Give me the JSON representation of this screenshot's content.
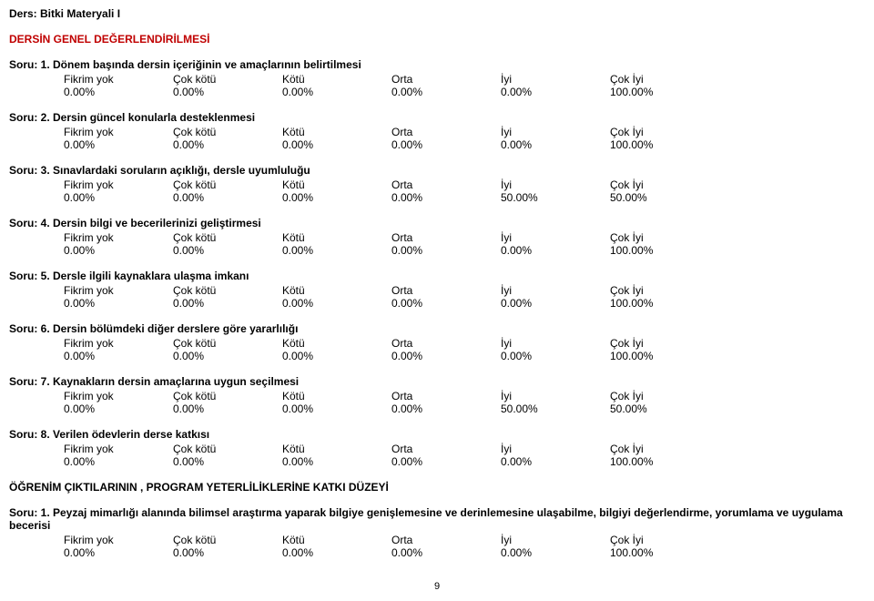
{
  "course_title": "Ders: Bitki Materyali I",
  "section1_title": "DERSİN GENEL DEĞERLENDİRİLMESİ",
  "labels": {
    "l0": "Fikrim yok",
    "l1": "Çok kötü",
    "l2": "Kötü",
    "l3": "Orta",
    "l4": "İyi",
    "l5": "Çok İyi"
  },
  "questions": [
    {
      "title": "Soru: 1. Dönem başında dersin içeriğinin ve amaçlarının belirtilmesi",
      "v": [
        "0.00%",
        "0.00%",
        "0.00%",
        "0.00%",
        "0.00%",
        "100.00%"
      ]
    },
    {
      "title": "Soru: 2. Dersin güncel konularla desteklenmesi",
      "v": [
        "0.00%",
        "0.00%",
        "0.00%",
        "0.00%",
        "0.00%",
        "100.00%"
      ]
    },
    {
      "title": "Soru: 3. Sınavlardaki soruların açıklığı, dersle uyumluluğu",
      "v": [
        "0.00%",
        "0.00%",
        "0.00%",
        "0.00%",
        "50.00%",
        "50.00%"
      ]
    },
    {
      "title": "Soru: 4. Dersin bilgi ve becerilerinizi geliştirmesi",
      "v": [
        "0.00%",
        "0.00%",
        "0.00%",
        "0.00%",
        "0.00%",
        "100.00%"
      ]
    },
    {
      "title": "Soru: 5. Dersle ilgili kaynaklara ulaşma imkanı",
      "v": [
        "0.00%",
        "0.00%",
        "0.00%",
        "0.00%",
        "0.00%",
        "100.00%"
      ]
    },
    {
      "title": "Soru: 6. Dersin bölümdeki diğer derslere göre yararlılığı",
      "v": [
        "0.00%",
        "0.00%",
        "0.00%",
        "0.00%",
        "0.00%",
        "100.00%"
      ]
    },
    {
      "title": "Soru: 7. Kaynakların dersin amaçlarına uygun seçilmesi",
      "v": [
        "0.00%",
        "0.00%",
        "0.00%",
        "0.00%",
        "50.00%",
        "50.00%"
      ]
    },
    {
      "title": "Soru: 8. Verilen ödevlerin derse katkısı",
      "v": [
        "0.00%",
        "0.00%",
        "0.00%",
        "0.00%",
        "0.00%",
        "100.00%"
      ]
    }
  ],
  "section2_title": "ÖĞRENİM ÇIKTILARININ , PROGRAM YETERLİLİKLERİNE KATKI DÜZEYİ",
  "outcome": {
    "title": "Soru: 1. Peyzaj mimarlığı alanında bilimsel araştırma yaparak bilgiye genişlemesine ve derinlemesine ulaşabilme, bilgiyi değerlendirme, yorumlama ve uygulama becerisi",
    "v": [
      "0.00%",
      "0.00%",
      "0.00%",
      "0.00%",
      "0.00%",
      "100.00%"
    ]
  },
  "page_number": "9"
}
